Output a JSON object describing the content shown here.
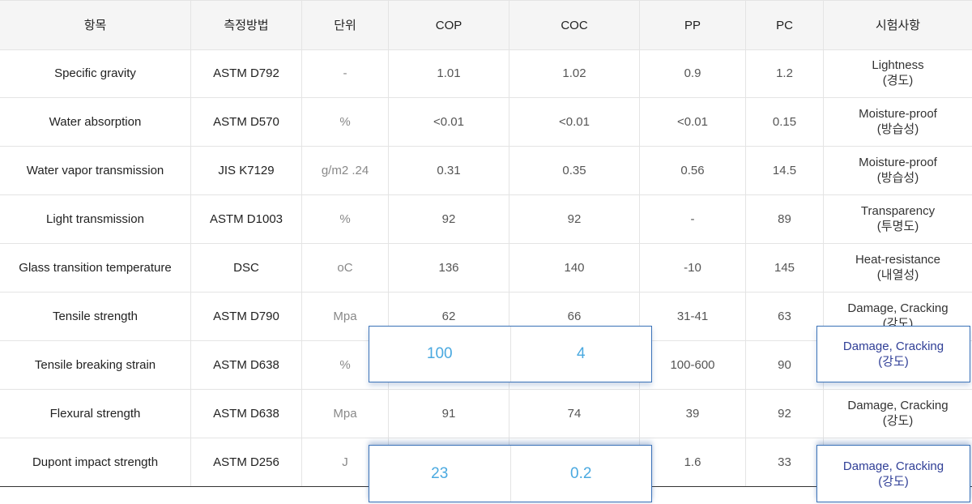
{
  "headers": [
    "항목",
    "측정방법",
    "단위",
    "COP",
    "COC",
    "PP",
    "PC",
    "시험사항"
  ],
  "rows": [
    {
      "item": "Specific gravity",
      "method": "ASTM D792",
      "unit": "-",
      "cop": "1.01",
      "coc": "1.02",
      "pp": "0.9",
      "pc": "1.2",
      "test_en": "Lightness",
      "test_ko": "(경도)"
    },
    {
      "item": "Water absorption",
      "method": "ASTM D570",
      "unit": "%",
      "cop": "<0.01",
      "coc": "<0.01",
      "pp": "<0.01",
      "pc": "0.15",
      "test_en": "Moisture-proof",
      "test_ko": "(방습성)"
    },
    {
      "item": "Water vapor transmission",
      "method": "JIS K7129",
      "unit": "g/m2 .24",
      "cop": "0.31",
      "coc": "0.35",
      "pp": "0.56",
      "pc": "14.5",
      "test_en": "Moisture-proof",
      "test_ko": "(방습성)"
    },
    {
      "item": "Light transmission",
      "method": "ASTM D1003",
      "unit": "%",
      "cop": "92",
      "coc": "92",
      "pp": "-",
      "pc": "89",
      "test_en": "Transparency",
      "test_ko": "(투명도)"
    },
    {
      "item": "Glass transition temperature",
      "method": "DSC",
      "unit": "oC",
      "cop": "136",
      "coc": "140",
      "pp": "-10",
      "pc": "145",
      "test_en": "Heat-resistance",
      "test_ko": "(내열성)"
    },
    {
      "item": "Tensile strength",
      "method": "ASTM D790",
      "unit": "Mpa",
      "cop": "62",
      "coc": "66",
      "pp": "31-41",
      "pc": "63",
      "test_en": "Damage, Cracking",
      "test_ko": "(강도)"
    },
    {
      "item": "Tensile breaking strain",
      "method": "ASTM D638",
      "unit": "%",
      "cop": "",
      "coc": "",
      "pp": "100-600",
      "pc": "90",
      "test_en": "",
      "test_ko": ""
    },
    {
      "item": "Flexural strength",
      "method": "ASTM D638",
      "unit": "Mpa",
      "cop": "91",
      "coc": "74",
      "pp": "39",
      "pc": "92",
      "test_en": "Damage, Cracking",
      "test_ko": "(강도)"
    },
    {
      "item": "Dupont impact strength",
      "method": "ASTM D256",
      "unit": "J",
      "cop": "",
      "coc": "",
      "pp": "1.6",
      "pc": "33",
      "test_en": "",
      "test_ko": ""
    }
  ],
  "highlights": {
    "breaking_strain": {
      "cop": "100",
      "coc": "4",
      "test_en": "Damage, Cracking",
      "test_ko": "(강도)"
    },
    "impact_strength": {
      "cop": "23",
      "coc": "0.2",
      "test_en": "Damage, Cracking",
      "test_ko": "(강도)"
    }
  },
  "colors": {
    "highlight_value": "#4aa9e0",
    "highlight_text": "#2f3e96",
    "highlight_border": "#3a72b8",
    "header_bg": "#f5f5f5"
  }
}
